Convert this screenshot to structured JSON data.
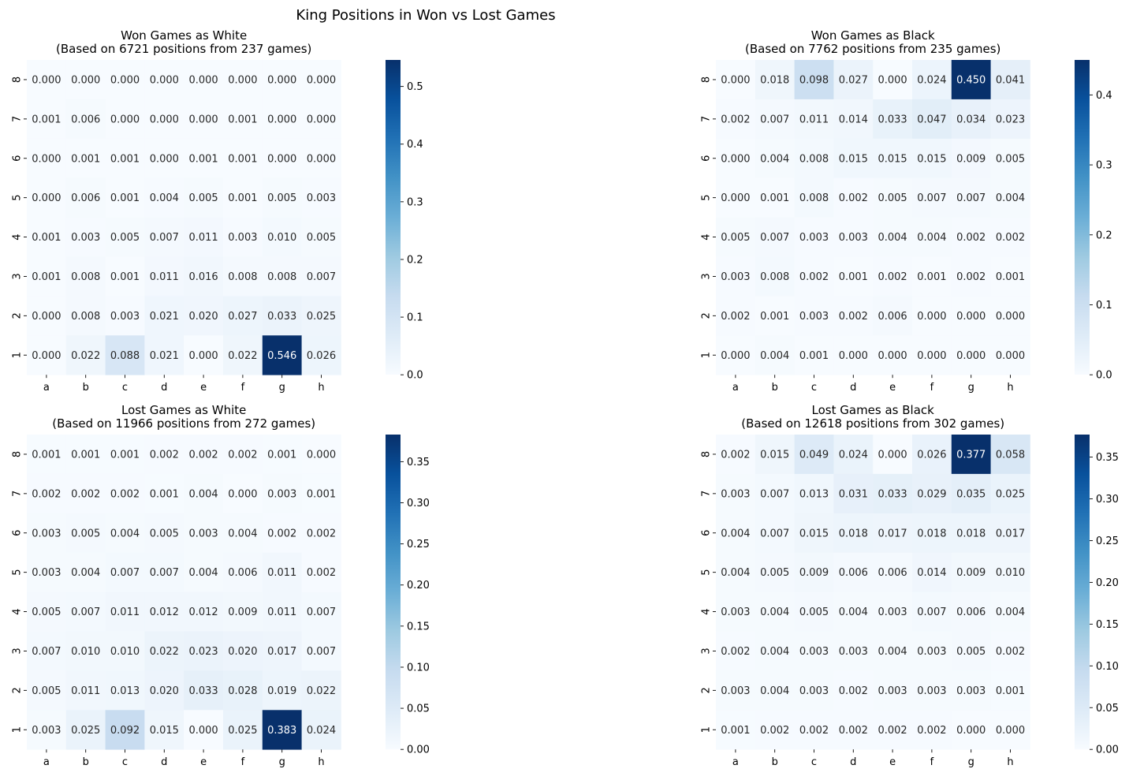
{
  "figure": {
    "title": "King Positions in Won vs Lost Games"
  },
  "colormap": {
    "name": "Blues",
    "stops": [
      "#f7fbff",
      "#deebf7",
      "#c6dbef",
      "#9ecae1",
      "#6baed6",
      "#4292c6",
      "#2171b5",
      "#08519c",
      "#08306b"
    ],
    "text_light": "#ffffff",
    "text_dark": "#262626"
  },
  "chart_data": [
    {
      "type": "heatmap",
      "title": "Won Games as White\n(Based on 6721 positions from 237 games)",
      "xlabel": "",
      "ylabel": "",
      "x_labels": [
        "a",
        "b",
        "c",
        "d",
        "e",
        "f",
        "g",
        "h"
      ],
      "y_labels": [
        "8",
        "7",
        "6",
        "5",
        "4",
        "3",
        "2",
        "1"
      ],
      "values": [
        [
          0.0,
          0.0,
          0.0,
          0.0,
          0.0,
          0.0,
          0.0,
          0.0
        ],
        [
          0.001,
          0.006,
          0.0,
          0.0,
          0.0,
          0.001,
          0.0,
          0.0
        ],
        [
          0.0,
          0.001,
          0.001,
          0.0,
          0.001,
          0.001,
          0.0,
          0.0
        ],
        [
          0.0,
          0.006,
          0.001,
          0.004,
          0.005,
          0.001,
          0.005,
          0.003
        ],
        [
          0.001,
          0.003,
          0.005,
          0.007,
          0.011,
          0.003,
          0.01,
          0.005
        ],
        [
          0.001,
          0.008,
          0.001,
          0.011,
          0.016,
          0.008,
          0.008,
          0.007
        ],
        [
          0.0,
          0.008,
          0.003,
          0.021,
          0.02,
          0.027,
          0.033,
          0.025
        ],
        [
          0.0,
          0.022,
          0.088,
          0.021,
          0.0,
          0.022,
          0.546,
          0.026
        ]
      ],
      "colorbar": {
        "min": 0,
        "max": 0.546,
        "ticks": [
          0.0,
          0.1,
          0.2,
          0.3,
          0.4,
          0.5
        ],
        "tick_labels": [
          "0.0",
          "0.1",
          "0.2",
          "0.3",
          "0.4",
          "0.5"
        ]
      }
    },
    {
      "type": "heatmap",
      "title": "Won Games as Black\n(Based on 7762 positions from 235 games)",
      "xlabel": "",
      "ylabel": "",
      "x_labels": [
        "a",
        "b",
        "c",
        "d",
        "e",
        "f",
        "g",
        "h"
      ],
      "y_labels": [
        "8",
        "7",
        "6",
        "5",
        "4",
        "3",
        "2",
        "1"
      ],
      "values": [
        [
          0.0,
          0.018,
          0.098,
          0.027,
          0.0,
          0.024,
          0.45,
          0.041
        ],
        [
          0.002,
          0.007,
          0.011,
          0.014,
          0.033,
          0.047,
          0.034,
          0.023
        ],
        [
          0.0,
          0.004,
          0.008,
          0.015,
          0.015,
          0.015,
          0.009,
          0.005
        ],
        [
          0.0,
          0.001,
          0.008,
          0.002,
          0.005,
          0.007,
          0.007,
          0.004
        ],
        [
          0.005,
          0.007,
          0.003,
          0.003,
          0.004,
          0.004,
          0.002,
          0.002
        ],
        [
          0.003,
          0.008,
          0.002,
          0.001,
          0.002,
          0.001,
          0.002,
          0.001
        ],
        [
          0.002,
          0.001,
          0.003,
          0.002,
          0.006,
          0.0,
          0.0,
          0.0
        ],
        [
          0.0,
          0.004,
          0.001,
          0.0,
          0.0,
          0.0,
          0.0,
          0.0
        ]
      ],
      "colorbar": {
        "min": 0,
        "max": 0.45,
        "ticks": [
          0.0,
          0.1,
          0.2,
          0.3,
          0.4
        ],
        "tick_labels": [
          "0.0",
          "0.1",
          "0.2",
          "0.3",
          "0.4"
        ]
      }
    },
    {
      "type": "heatmap",
      "title": "Lost Games as White\n(Based on 11966 positions from 272 games)",
      "xlabel": "",
      "ylabel": "",
      "x_labels": [
        "a",
        "b",
        "c",
        "d",
        "e",
        "f",
        "g",
        "h"
      ],
      "y_labels": [
        "8",
        "7",
        "6",
        "5",
        "4",
        "3",
        "2",
        "1"
      ],
      "values": [
        [
          0.001,
          0.001,
          0.001,
          0.002,
          0.002,
          0.002,
          0.001,
          0.0
        ],
        [
          0.002,
          0.002,
          0.002,
          0.001,
          0.004,
          0.0,
          0.003,
          0.001
        ],
        [
          0.003,
          0.005,
          0.004,
          0.005,
          0.003,
          0.004,
          0.002,
          0.002
        ],
        [
          0.003,
          0.004,
          0.007,
          0.007,
          0.004,
          0.006,
          0.011,
          0.002
        ],
        [
          0.005,
          0.007,
          0.011,
          0.012,
          0.012,
          0.009,
          0.011,
          0.007
        ],
        [
          0.007,
          0.01,
          0.01,
          0.022,
          0.023,
          0.02,
          0.017,
          0.007
        ],
        [
          0.005,
          0.011,
          0.013,
          0.02,
          0.033,
          0.028,
          0.019,
          0.022
        ],
        [
          0.003,
          0.025,
          0.092,
          0.015,
          0.0,
          0.025,
          0.383,
          0.024
        ]
      ],
      "colorbar": {
        "min": 0,
        "max": 0.383,
        "ticks": [
          0.0,
          0.05,
          0.1,
          0.15,
          0.2,
          0.25,
          0.3,
          0.35
        ],
        "tick_labels": [
          "0.00",
          "0.05",
          "0.10",
          "0.15",
          "0.20",
          "0.25",
          "0.30",
          "0.35"
        ]
      }
    },
    {
      "type": "heatmap",
      "title": "Lost Games as Black\n(Based on 12618 positions from 302 games)",
      "xlabel": "",
      "ylabel": "",
      "x_labels": [
        "a",
        "b",
        "c",
        "d",
        "e",
        "f",
        "g",
        "h"
      ],
      "y_labels": [
        "8",
        "7",
        "6",
        "5",
        "4",
        "3",
        "2",
        "1"
      ],
      "values": [
        [
          0.002,
          0.015,
          0.049,
          0.024,
          0.0,
          0.026,
          0.377,
          0.058
        ],
        [
          0.003,
          0.007,
          0.013,
          0.031,
          0.033,
          0.029,
          0.035,
          0.025
        ],
        [
          0.004,
          0.007,
          0.015,
          0.018,
          0.017,
          0.018,
          0.018,
          0.017
        ],
        [
          0.004,
          0.005,
          0.009,
          0.006,
          0.006,
          0.014,
          0.009,
          0.01
        ],
        [
          0.003,
          0.004,
          0.005,
          0.004,
          0.003,
          0.007,
          0.006,
          0.004
        ],
        [
          0.002,
          0.004,
          0.003,
          0.003,
          0.004,
          0.003,
          0.005,
          0.002
        ],
        [
          0.003,
          0.004,
          0.003,
          0.002,
          0.003,
          0.003,
          0.003,
          0.001
        ],
        [
          0.001,
          0.002,
          0.002,
          0.002,
          0.002,
          0.002,
          0.0,
          0.0
        ]
      ],
      "colorbar": {
        "min": 0,
        "max": 0.377,
        "ticks": [
          0.0,
          0.05,
          0.1,
          0.15,
          0.2,
          0.25,
          0.3,
          0.35
        ],
        "tick_labels": [
          "0.00",
          "0.05",
          "0.10",
          "0.15",
          "0.20",
          "0.25",
          "0.30",
          "0.35"
        ]
      }
    }
  ]
}
